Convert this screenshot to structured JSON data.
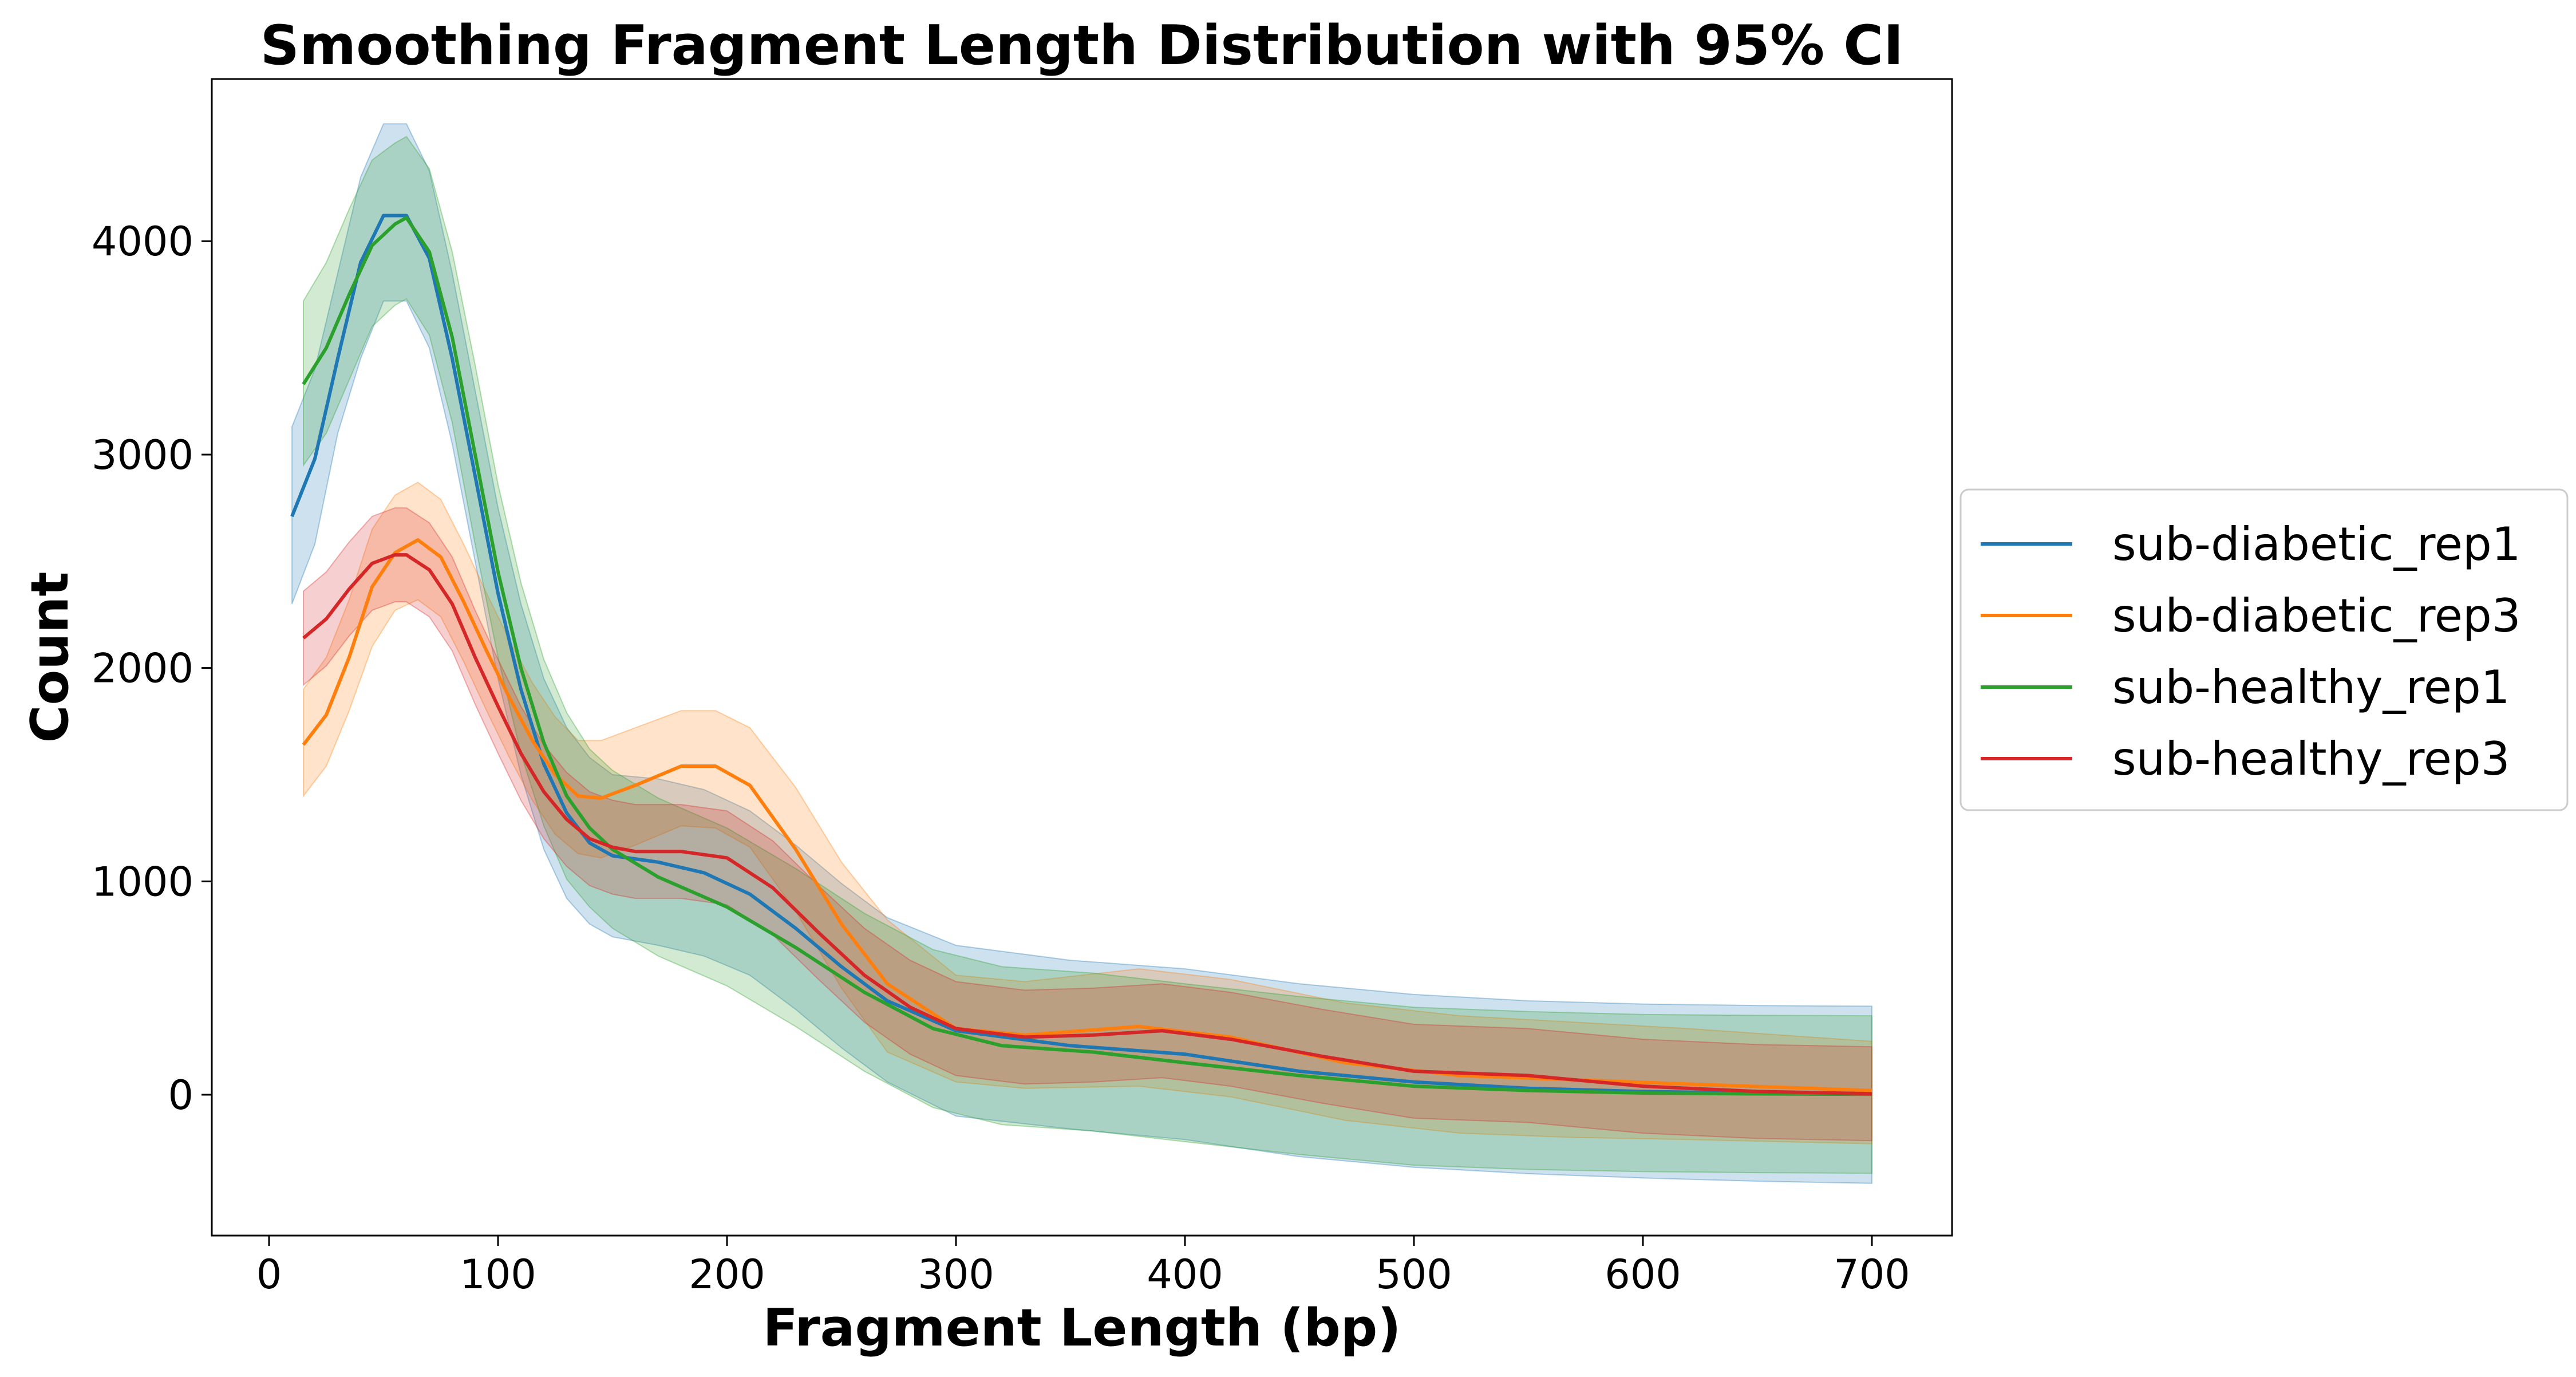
{
  "chart_data": {
    "type": "line",
    "title": "Smoothing Fragment Length Distribution with 95% CI",
    "xlabel": "Fragment Length (bp)",
    "ylabel": "Count",
    "xlim": [
      -25,
      735
    ],
    "ylim": [
      -660,
      4760
    ],
    "xticks": [
      0,
      100,
      200,
      300,
      400,
      500,
      600,
      700
    ],
    "yticks": [
      0,
      1000,
      2000,
      3000,
      4000
    ],
    "grid": false,
    "legend_position": "center-right-outside",
    "series": [
      {
        "name": "sub-diabetic_rep1",
        "color": "#1f77b4",
        "x": [
          10,
          20,
          30,
          40,
          50,
          60,
          70,
          80,
          90,
          100,
          110,
          120,
          130,
          140,
          150,
          170,
          190,
          210,
          230,
          250,
          270,
          300,
          350,
          400,
          450,
          500,
          550,
          600,
          650,
          700
        ],
        "y": [
          2710,
          2980,
          3450,
          3900,
          4120,
          4120,
          3920,
          3450,
          2900,
          2350,
          1900,
          1550,
          1320,
          1180,
          1120,
          1090,
          1040,
          940,
          780,
          600,
          440,
          300,
          230,
          190,
          110,
          60,
          30,
          15,
          8,
          5
        ],
        "lower": [
          2300,
          2580,
          3100,
          3450,
          3720,
          3720,
          3500,
          3050,
          2500,
          1950,
          1500,
          1150,
          920,
          800,
          740,
          700,
          650,
          560,
          400,
          220,
          60,
          -100,
          -160,
          -210,
          -290,
          -340,
          -370,
          -390,
          -405,
          -415
        ],
        "upper": [
          3130,
          3400,
          3850,
          4300,
          4550,
          4550,
          4330,
          3850,
          3300,
          2750,
          2300,
          1950,
          1720,
          1580,
          1500,
          1480,
          1430,
          1330,
          1170,
          990,
          830,
          700,
          630,
          590,
          520,
          470,
          440,
          425,
          418,
          415
        ]
      },
      {
        "name": "sub-diabetic_rep3",
        "color": "#ff7f0e",
        "x": [
          15,
          25,
          35,
          45,
          55,
          65,
          75,
          85,
          95,
          105,
          115,
          125,
          135,
          145,
          160,
          180,
          195,
          210,
          230,
          250,
          270,
          300,
          330,
          380,
          420,
          470,
          520,
          570,
          620,
          700
        ],
        "y": [
          1640,
          1780,
          2050,
          2380,
          2540,
          2600,
          2520,
          2310,
          2080,
          1860,
          1660,
          1500,
          1400,
          1390,
          1450,
          1540,
          1540,
          1450,
          1150,
          800,
          520,
          310,
          280,
          320,
          270,
          150,
          90,
          70,
          50,
          20
        ],
        "lower": [
          1400,
          1540,
          1800,
          2100,
          2270,
          2320,
          2240,
          2030,
          1800,
          1580,
          1380,
          1220,
          1130,
          1110,
          1170,
          1260,
          1250,
          1160,
          860,
          500,
          200,
          60,
          30,
          40,
          -10,
          -120,
          -180,
          -200,
          -210,
          -230
        ],
        "upper": [
          1900,
          2050,
          2320,
          2650,
          2810,
          2870,
          2790,
          2580,
          2350,
          2130,
          1930,
          1770,
          1660,
          1660,
          1720,
          1800,
          1800,
          1720,
          1440,
          1090,
          820,
          560,
          530,
          590,
          540,
          430,
          370,
          340,
          310,
          250
        ]
      },
      {
        "name": "sub-healthy_rep1",
        "color": "#2ca02c",
        "x": [
          15,
          25,
          35,
          45,
          55,
          60,
          70,
          80,
          90,
          100,
          110,
          120,
          130,
          140,
          150,
          170,
          200,
          230,
          260,
          290,
          320,
          360,
          400,
          450,
          500,
          550,
          600,
          650,
          700
        ],
        "y": [
          3330,
          3500,
          3750,
          3980,
          4080,
          4110,
          3950,
          3550,
          3000,
          2450,
          2000,
          1650,
          1400,
          1250,
          1150,
          1020,
          880,
          690,
          480,
          310,
          230,
          200,
          150,
          90,
          40,
          20,
          8,
          4,
          2
        ],
        "lower": [
          2950,
          3100,
          3350,
          3600,
          3700,
          3730,
          3560,
          3150,
          2580,
          2050,
          1600,
          1260,
          1010,
          880,
          780,
          650,
          510,
          320,
          110,
          -60,
          -140,
          -170,
          -220,
          -280,
          -330,
          -350,
          -360,
          -365,
          -368
        ],
        "upper": [
          3720,
          3900,
          4150,
          4380,
          4460,
          4490,
          4340,
          3950,
          3420,
          2860,
          2400,
          2040,
          1790,
          1620,
          1520,
          1390,
          1250,
          1060,
          850,
          680,
          600,
          570,
          520,
          460,
          410,
          390,
          376,
          372,
          370
        ]
      },
      {
        "name": "sub-healthy_rep3",
        "color": "#d62728",
        "x": [
          15,
          25,
          35,
          45,
          55,
          60,
          70,
          80,
          90,
          100,
          110,
          120,
          130,
          140,
          150,
          160,
          180,
          200,
          220,
          240,
          260,
          280,
          300,
          330,
          360,
          390,
          420,
          460,
          500,
          550,
          600,
          650,
          700
        ],
        "y": [
          2140,
          2230,
          2370,
          2490,
          2530,
          2530,
          2460,
          2300,
          2050,
          1820,
          1600,
          1420,
          1290,
          1200,
          1160,
          1140,
          1140,
          1110,
          970,
          760,
          560,
          410,
          310,
          270,
          280,
          300,
          260,
          180,
          110,
          90,
          40,
          15,
          5
        ],
        "lower": [
          1920,
          2010,
          2150,
          2270,
          2310,
          2310,
          2240,
          2080,
          1830,
          1600,
          1380,
          1200,
          1070,
          980,
          940,
          920,
          920,
          890,
          750,
          540,
          340,
          190,
          90,
          50,
          60,
          80,
          40,
          -40,
          -110,
          -130,
          -180,
          -205,
          -215
        ],
        "upper": [
          2360,
          2450,
          2590,
          2710,
          2750,
          2750,
          2680,
          2520,
          2270,
          2040,
          1820,
          1640,
          1510,
          1420,
          1380,
          1360,
          1360,
          1330,
          1190,
          980,
          780,
          630,
          530,
          490,
          500,
          520,
          480,
          400,
          330,
          310,
          260,
          235,
          225
        ]
      }
    ]
  }
}
